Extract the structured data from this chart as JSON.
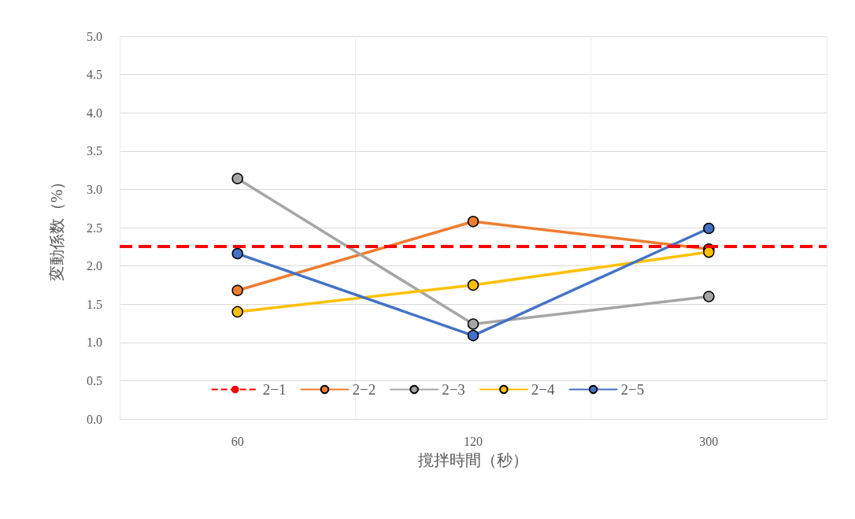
{
  "chart_data": {
    "type": "line",
    "xlabel": "撹拌時間（秒）",
    "ylabel": "変動係数（%）",
    "categories": [
      "60",
      "120",
      "300"
    ],
    "series": [
      {
        "name": "2−2",
        "color": "#ed7d31",
        "values": [
          1.68,
          2.58,
          2.22
        ]
      },
      {
        "name": "2−3",
        "color": "#a5a5a5",
        "values": [
          3.14,
          1.24,
          1.6
        ]
      },
      {
        "name": "2−4",
        "color": "#ffc000",
        "values": [
          1.4,
          1.75,
          2.18
        ]
      },
      {
        "name": "2−5",
        "color": "#4472c4",
        "values": [
          2.16,
          1.09,
          2.49
        ]
      }
    ],
    "ref_lines": [
      {
        "axis": "y",
        "value": 2.26,
        "label": "2−1",
        "color": "#ff0000",
        "line_style": "dashed"
      }
    ],
    "ylim": [
      0,
      5
    ],
    "yticks": [
      {
        "value": 0,
        "label": "0.0"
      },
      0.5,
      {
        "value": 1,
        "label": "1.0"
      },
      1.5,
      {
        "value": 2,
        "label": "2.0"
      },
      2.5,
      {
        "value": 3,
        "label": "3.0"
      },
      3.5,
      {
        "value": 4,
        "label": "4.0"
      },
      4.5,
      {
        "value": 5,
        "label": "5.0"
      }
    ],
    "grid": true,
    "legend": "bottom",
    "marker": "circle",
    "line_style": "solid"
  }
}
